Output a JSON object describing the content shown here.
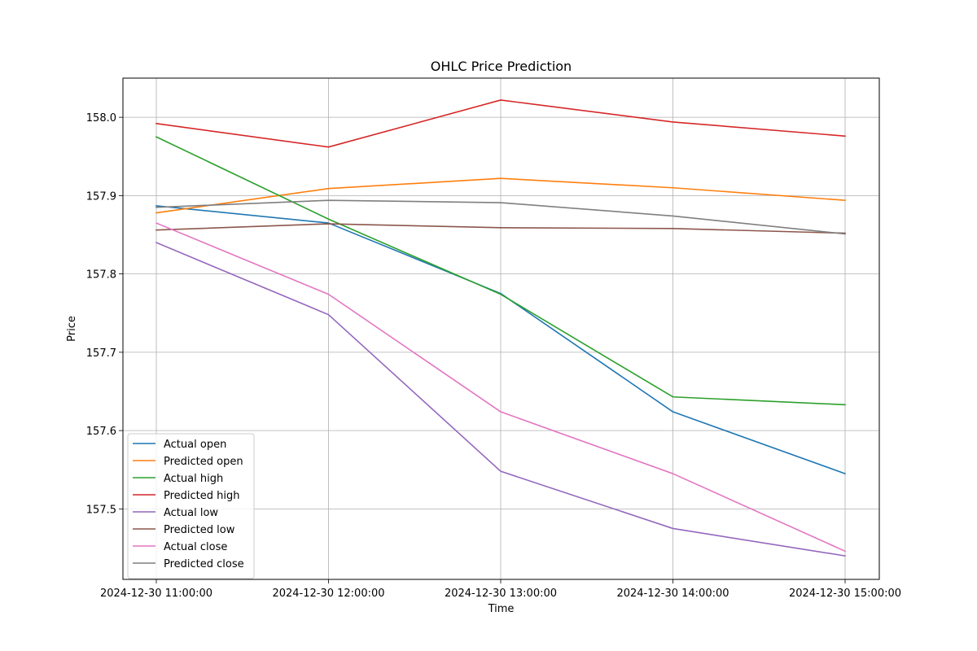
{
  "chart_data": {
    "type": "line",
    "title": "OHLC Price Prediction",
    "xlabel": "Time",
    "ylabel": "Price",
    "x": [
      "2024-12-30 11:00:00",
      "2024-12-30 12:00:00",
      "2024-12-30 13:00:00",
      "2024-12-30 14:00:00",
      "2024-12-30 15:00:00"
    ],
    "ylim": [
      157.41,
      158.05
    ],
    "yticks": [
      "157.5",
      "157.6",
      "157.7",
      "157.8",
      "157.9",
      "158.0"
    ],
    "grid": true,
    "legend_position": "lower-left",
    "series": [
      {
        "name": "Actual open",
        "color": "#1f77b4",
        "values": [
          157.887,
          157.865,
          157.775,
          157.624,
          157.545
        ]
      },
      {
        "name": "Predicted open",
        "color": "#ff7f0e",
        "values": [
          157.878,
          157.909,
          157.922,
          157.91,
          157.894
        ]
      },
      {
        "name": "Actual high",
        "color": "#2ca02c",
        "values": [
          157.975,
          157.87,
          157.774,
          157.643,
          157.633
        ]
      },
      {
        "name": "Predicted high",
        "color": "#d62728",
        "values": [
          157.992,
          157.962,
          158.022,
          157.994,
          157.976
        ]
      },
      {
        "name": "Actual low",
        "color": "#9467bd",
        "values": [
          157.84,
          157.748,
          157.548,
          157.475,
          157.44
        ]
      },
      {
        "name": "Predicted low",
        "color": "#8c564b",
        "values": [
          157.856,
          157.864,
          157.859,
          157.858,
          157.852
        ]
      },
      {
        "name": "Actual close",
        "color": "#e377c2",
        "values": [
          157.865,
          157.774,
          157.624,
          157.545,
          157.446
        ]
      },
      {
        "name": "Predicted close",
        "color": "#7f7f7f",
        "values": [
          157.885,
          157.894,
          157.891,
          157.874,
          157.851
        ]
      }
    ]
  }
}
